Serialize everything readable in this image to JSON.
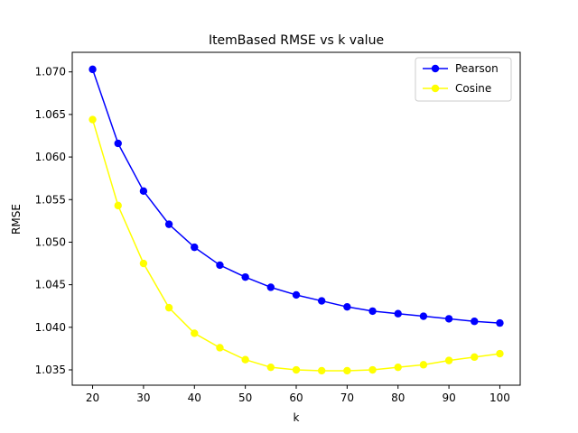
{
  "chart_data": {
    "type": "line",
    "title": "ItemBased RMSE vs k value",
    "xlabel": "k",
    "ylabel": "RMSE",
    "xlim": [
      16,
      104
    ],
    "ylim": [
      1.0332,
      1.0723
    ],
    "xticks": [
      20,
      30,
      40,
      50,
      60,
      70,
      80,
      90,
      100
    ],
    "xtick_labels": [
      "20",
      "30",
      "40",
      "50",
      "60",
      "70",
      "80",
      "90",
      "100"
    ],
    "yticks": [
      1.035,
      1.04,
      1.045,
      1.05,
      1.055,
      1.06,
      1.065,
      1.07
    ],
    "ytick_labels": [
      "1.035",
      "1.040",
      "1.045",
      "1.050",
      "1.055",
      "1.060",
      "1.065",
      "1.070"
    ],
    "grid": false,
    "legend_position": "top-right",
    "x": [
      20,
      25,
      30,
      35,
      40,
      45,
      50,
      55,
      60,
      65,
      70,
      75,
      80,
      85,
      90,
      95,
      100
    ],
    "series": [
      {
        "name": "Pearson",
        "color": "#0000ff",
        "values": [
          1.0703,
          1.0616,
          1.056,
          1.0521,
          1.0494,
          1.0473,
          1.0459,
          1.0447,
          1.0438,
          1.0431,
          1.0424,
          1.0419,
          1.0416,
          1.0413,
          1.041,
          1.0407,
          1.0405
        ]
      },
      {
        "name": "Cosine",
        "color": "#ffff00",
        "values": [
          1.0644,
          1.0543,
          1.0475,
          1.0423,
          1.0393,
          1.0376,
          1.0362,
          1.0353,
          1.035,
          1.0349,
          1.0349,
          1.035,
          1.0353,
          1.0356,
          1.0361,
          1.0365,
          1.0369
        ]
      }
    ]
  }
}
